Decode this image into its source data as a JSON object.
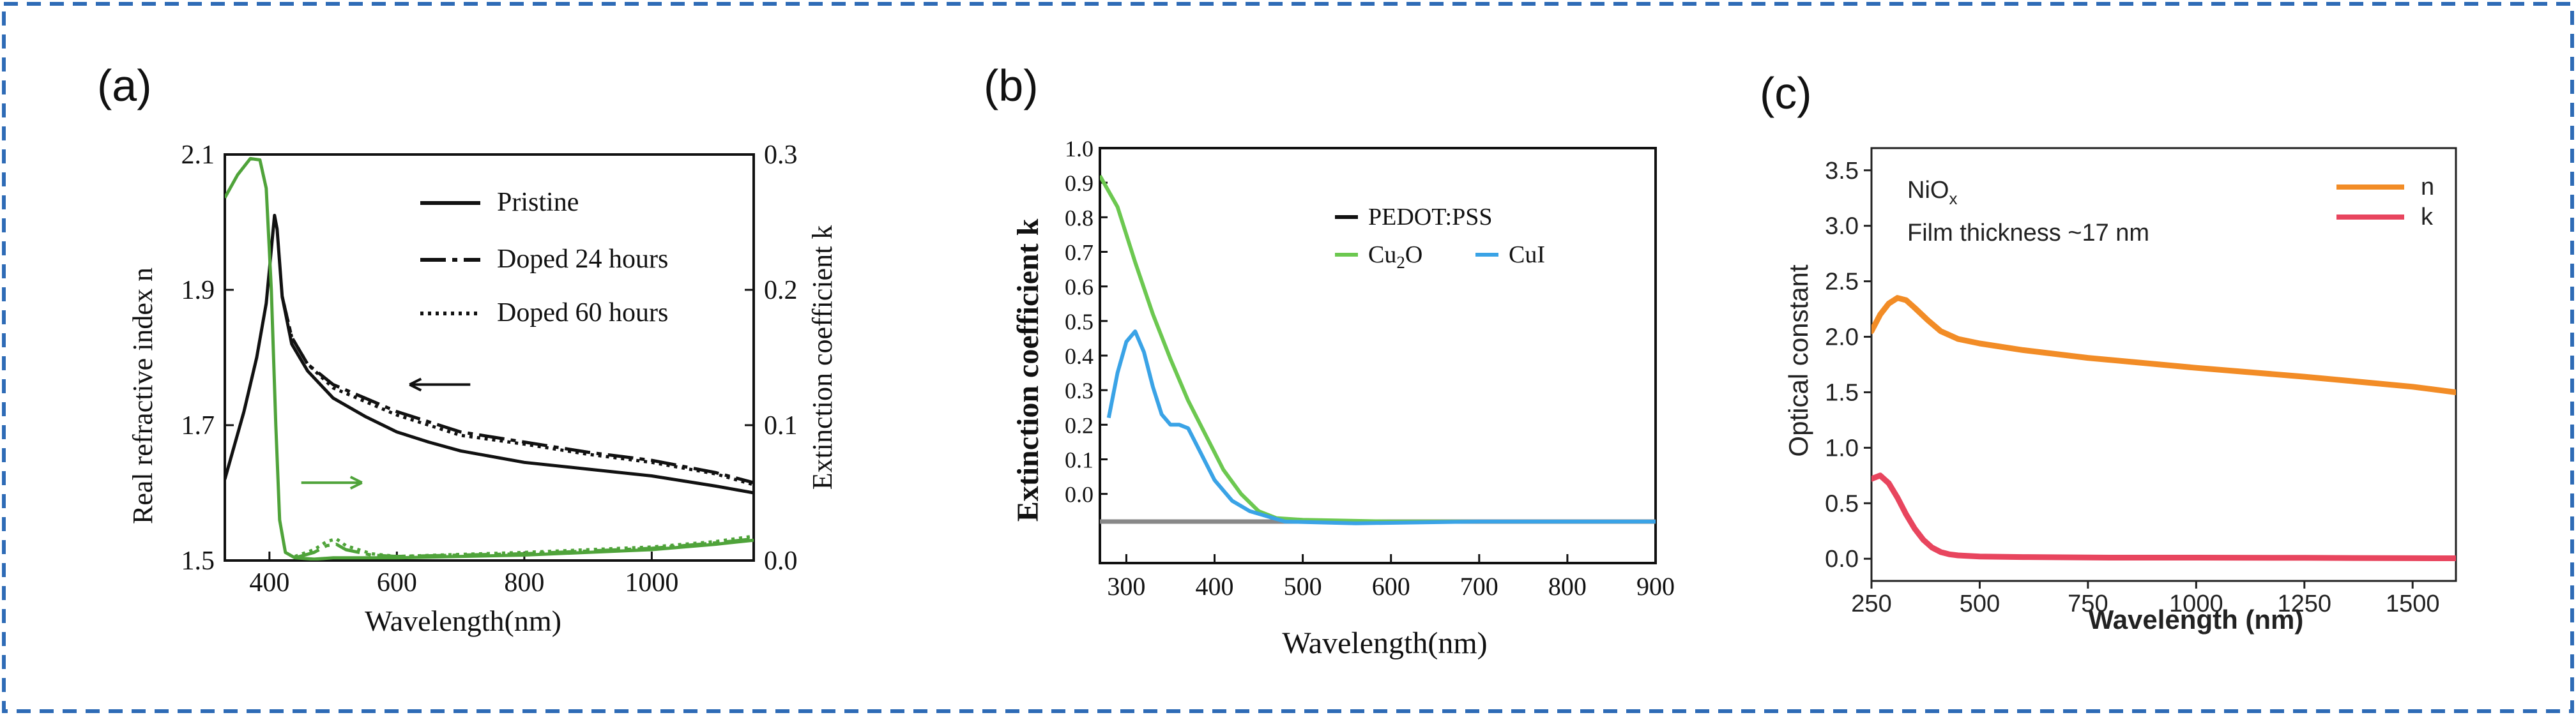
{
  "colors": {
    "border": "#2e6bb6",
    "black": "#111111",
    "green": "#4fa33a",
    "green_b": "#6cc850",
    "blue_b": "#3aa3e6",
    "gray": "#888888",
    "orange": "#f28c26",
    "pink": "#e8455e"
  },
  "chart_data": [
    {
      "panel_label": "(a)",
      "type": "line",
      "xlabel": "Wavelength(nm)",
      "ylabel": "Real refractive index n",
      "ylabel_right": "Extinction coefficient k",
      "xlim": [
        330,
        1160
      ],
      "ylim": [
        1.5,
        2.1
      ],
      "ylim_right": [
        0,
        0.3
      ],
      "xticks": [
        400,
        600,
        800,
        1000
      ],
      "xtick_labels": [
        "400",
        "600",
        "800",
        "1000"
      ],
      "yticks": [
        1.5,
        1.7,
        1.9,
        2.1
      ],
      "ytick_labels": [
        "1.5",
        "1.7",
        "1.9",
        "2.1"
      ],
      "yticks_right": [
        0,
        0.1,
        0.2,
        0.3
      ],
      "ytick_right_labels": [
        "0.0",
        "0.1",
        "0.2",
        "0.3"
      ],
      "legend": [
        "Pristine",
        "Doped 24 hours",
        "Doped 60 hours"
      ],
      "series": [
        {
          "name": "Pristine",
          "axis": "left",
          "style": "solid",
          "x": [
            330,
            360,
            380,
            395,
            403,
            408,
            412,
            420,
            435,
            460,
            500,
            550,
            600,
            650,
            700,
            800,
            900,
            1000,
            1100,
            1160
          ],
          "y": [
            1.62,
            1.72,
            1.8,
            1.88,
            1.96,
            2.01,
            1.99,
            1.89,
            1.82,
            1.78,
            1.74,
            1.713,
            1.69,
            1.675,
            1.662,
            1.645,
            1.635,
            1.625,
            1.61,
            1.6
          ]
        },
        {
          "name": "Doped 24 hours",
          "axis": "left",
          "style": "dash",
          "x": [
            420,
            435,
            460,
            500,
            550,
            600,
            650,
            700,
            800,
            900,
            1000,
            1100,
            1160
          ],
          "y": [
            1.89,
            1.83,
            1.79,
            1.76,
            1.74,
            1.72,
            1.705,
            1.69,
            1.675,
            1.66,
            1.648,
            1.63,
            1.615
          ]
        },
        {
          "name": "Doped 60 hours",
          "axis": "left",
          "style": "dot",
          "x": [
            420,
            435,
            460,
            500,
            550,
            600,
            650,
            700,
            800,
            900,
            1000,
            1100,
            1160
          ],
          "y": [
            1.89,
            1.83,
            1.79,
            1.755,
            1.735,
            1.715,
            1.7,
            1.685,
            1.672,
            1.657,
            1.645,
            1.628,
            1.612
          ]
        },
        {
          "name": "Pristine k",
          "axis": "right",
          "style": "solid",
          "x": [
            330,
            350,
            370,
            385,
            395,
            403,
            410,
            416,
            425,
            440,
            470,
            500,
            600,
            800,
            1000,
            1100,
            1160
          ],
          "y": [
            0.268,
            0.285,
            0.297,
            0.296,
            0.275,
            0.2,
            0.1,
            0.03,
            0.006,
            0.002,
            0.001,
            0.002,
            0.002,
            0.004,
            0.008,
            0.012,
            0.015
          ]
        },
        {
          "name": "Doped 24 hours k",
          "axis": "right",
          "style": "dash",
          "x": [
            440,
            470,
            490,
            505,
            520,
            560,
            600,
            800,
            1000,
            1100,
            1160
          ],
          "y": [
            0.002,
            0.006,
            0.011,
            0.012,
            0.008,
            0.004,
            0.003,
            0.005,
            0.009,
            0.013,
            0.016
          ]
        },
        {
          "name": "Doped 60 hours k",
          "axis": "right",
          "style": "dot",
          "x": [
            440,
            470,
            490,
            505,
            520,
            560,
            600,
            800,
            1000,
            1100,
            1160
          ],
          "y": [
            0.003,
            0.008,
            0.014,
            0.016,
            0.011,
            0.005,
            0.003,
            0.006,
            0.01,
            0.014,
            0.018
          ]
        }
      ],
      "annotations": [
        {
          "type": "arrow",
          "direction": "left",
          "axis": "left",
          "x": 620,
          "y": 1.76,
          "color": "black"
        },
        {
          "type": "arrow",
          "direction": "right",
          "axis": "left",
          "x": 450,
          "y": 1.615,
          "color": "green"
        }
      ]
    },
    {
      "panel_label": "(b)",
      "type": "line",
      "xlabel": "Wavelength(nm)",
      "ylabel": "Extinction coefficient k",
      "xlim": [
        270,
        900
      ],
      "ylim": [
        -0.2,
        1.0
      ],
      "xticks": [
        300,
        400,
        500,
        600,
        700,
        800,
        900
      ],
      "xtick_labels": [
        "300",
        "400",
        "500",
        "600",
        "700",
        "800",
        "900"
      ],
      "yticks": [
        0,
        0.1,
        0.2,
        0.3,
        0.4,
        0.5,
        0.6,
        0.7,
        0.8,
        0.9,
        1.0
      ],
      "ytick_labels": [
        "0.0",
        "0.1",
        "0.2",
        "0.3",
        "0.4",
        "0.5",
        "0.6",
        "0.7",
        "0.8",
        "0.9",
        "1.0"
      ],
      "legend": [
        "PEDOT:PSS",
        "Cu2O",
        "CuI"
      ],
      "series": [
        {
          "name": "PEDOT:PSS",
          "x": [
            270,
            900
          ],
          "y": [
            -0.08,
            -0.08
          ]
        },
        {
          "name": "Cu2O",
          "x": [
            270,
            290,
            310,
            330,
            350,
            370,
            390,
            410,
            430,
            450,
            470,
            500,
            600,
            900
          ],
          "y": [
            0.92,
            0.83,
            0.67,
            0.52,
            0.39,
            0.27,
            0.17,
            0.07,
            0.0,
            -0.05,
            -0.07,
            -0.075,
            -0.08,
            -0.08
          ]
        },
        {
          "name": "CuI",
          "x": [
            280,
            290,
            300,
            310,
            320,
            330,
            340,
            350,
            360,
            370,
            380,
            390,
            400,
            410,
            420,
            440,
            480,
            560,
            700,
            900
          ],
          "y": [
            0.22,
            0.35,
            0.44,
            0.47,
            0.41,
            0.31,
            0.23,
            0.2,
            0.2,
            0.19,
            0.14,
            0.09,
            0.04,
            0.01,
            -0.02,
            -0.05,
            -0.08,
            -0.085,
            -0.08,
            -0.08
          ]
        }
      ]
    },
    {
      "panel_label": "(c)",
      "type": "line",
      "xlabel": "Wavelength (nm)",
      "ylabel": "Optical constant",
      "xlim": [
        250,
        1600
      ],
      "ylim": [
        -0.2,
        3.7
      ],
      "xticks": [
        250,
        500,
        750,
        1000,
        1250,
        1500
      ],
      "xtick_labels": [
        "250",
        "500",
        "750",
        "1000",
        "1250",
        "1500"
      ],
      "yticks": [
        0,
        0.5,
        1.0,
        1.5,
        2.0,
        2.5,
        3.0,
        3.5
      ],
      "ytick_labels": [
        "0.0",
        "0.5",
        "1.0",
        "1.5",
        "2.0",
        "2.5",
        "3.0",
        "3.5"
      ],
      "legend": [
        "n",
        "k"
      ],
      "annotations": [
        {
          "text": "NiO",
          "subscript": "x"
        },
        {
          "text": "Film thickness ~17 nm"
        }
      ],
      "series": [
        {
          "name": "n",
          "x": [
            250,
            270,
            290,
            310,
            330,
            350,
            380,
            410,
            450,
            500,
            600,
            750,
            1000,
            1250,
            1500,
            1600
          ],
          "y": [
            2.05,
            2.2,
            2.3,
            2.35,
            2.33,
            2.26,
            2.15,
            2.05,
            1.98,
            1.94,
            1.88,
            1.81,
            1.72,
            1.64,
            1.55,
            1.5
          ]
        },
        {
          "name": "k",
          "x": [
            250,
            270,
            290,
            310,
            330,
            350,
            370,
            390,
            410,
            430,
            450,
            500,
            600,
            800,
            1000,
            1250,
            1500,
            1600
          ],
          "y": [
            0.72,
            0.75,
            0.68,
            0.55,
            0.4,
            0.27,
            0.17,
            0.1,
            0.06,
            0.04,
            0.03,
            0.02,
            0.015,
            0.01,
            0.01,
            0.008,
            0.005,
            0.004
          ]
        }
      ]
    }
  ]
}
